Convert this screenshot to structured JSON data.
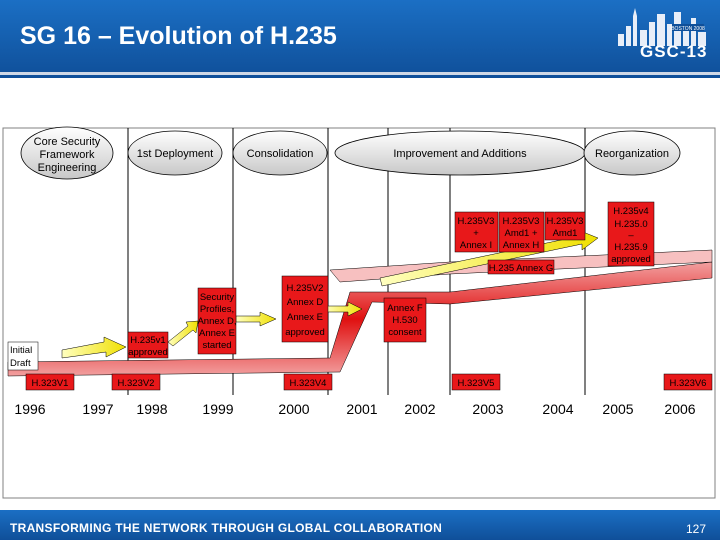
{
  "title": "SG 16 – Evolution of H.235",
  "logo": {
    "small_text": "BOSTON 2008",
    "text": "GSC-13"
  },
  "footer": {
    "text": "TRANSFORMING THE NETWORK THROUGH GLOBAL COLLABORATION",
    "page_number": "127"
  },
  "phases": [
    {
      "lines": [
        "Core Security",
        "Framework",
        "Engineering"
      ]
    },
    {
      "lines": [
        "1st Deployment"
      ]
    },
    {
      "lines": [
        "Consolidation"
      ]
    },
    {
      "lines": [
        "Improvement and Additions"
      ]
    },
    {
      "lines": [
        "Reorganization"
      ]
    }
  ],
  "years": [
    "1996",
    "1997",
    "1998",
    "1999",
    "2000",
    "2001",
    "2002",
    "2003",
    "2004",
    "2005",
    "2006"
  ],
  "h323_versions": [
    "H.323V1",
    "H.323V2",
    "H.323V4",
    "H.323V5",
    "H.323V6"
  ],
  "boxes": {
    "initial_draft": [
      "Initial",
      "Draft"
    ],
    "h235v1": [
      "H.235v1",
      "approved"
    ],
    "security_profiles": [
      "Security",
      "Profiles,",
      "Annex D,",
      "Annex E",
      "started"
    ],
    "h235v2": "H.235V2",
    "annex_d": "Annex D",
    "annex_e": "Annex E",
    "approved": "approved",
    "annex_f": [
      "Annex F",
      "H.530",
      "consent"
    ],
    "h235v3_a": [
      "H.235V3",
      "+",
      "Annex I"
    ],
    "h235v3_b": [
      "H.235V3",
      "Amd1 +",
      "Annex H"
    ],
    "h235v3_c": [
      "H.235V3",
      "Amd1"
    ],
    "h235v4": [
      "H.235v4",
      "H.235.0",
      "–",
      "H.235.9",
      "approved"
    ],
    "annex_g": "H.235 Annex G"
  }
}
